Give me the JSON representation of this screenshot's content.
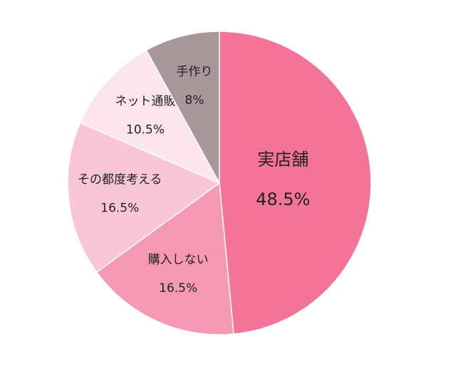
{
  "chart_data": {
    "type": "pie",
    "categories": [
      "実店舗",
      "購入しない",
      "その都度考える",
      "ネット通販",
      "手作り"
    ],
    "values": [
      48.5,
      16.5,
      16.5,
      10.5,
      8
    ],
    "value_labels": [
      "48.5%",
      "16.5%",
      "16.5%",
      "10.5%",
      "8%"
    ],
    "colors": [
      "#f47399",
      "#f599b5",
      "#f9c6d7",
      "#fde5ed",
      "#a8979b"
    ]
  }
}
